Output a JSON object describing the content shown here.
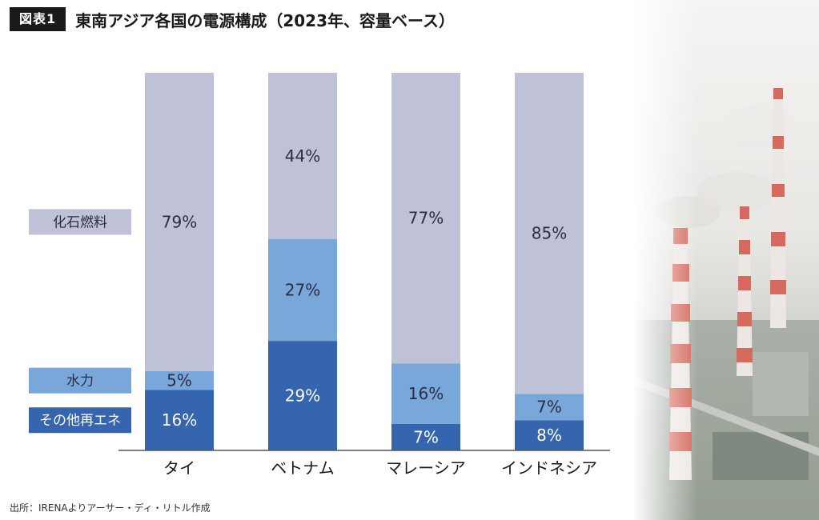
{
  "title_badge": "図表1",
  "title": "東南アジア各国の電源構成（2023年、容量ベース）",
  "source": "出所：IRENAよりアーサー・ディ・リトル作成",
  "colors": {
    "fossil": "#bfc1d6",
    "hydro": "#7aa7da",
    "other": "#3565ae",
    "text_dark": "#2a2d45",
    "text_light": "#ffffff"
  },
  "chart_data": {
    "type": "bar",
    "stacked": true,
    "unit": "%",
    "categories": [
      "タイ",
      "ベトナム",
      "マレーシア",
      "インドネシア"
    ],
    "series": [
      {
        "name": "その他再エネ",
        "values": [
          16,
          29,
          7,
          8
        ]
      },
      {
        "name": "水力",
        "values": [
          5,
          27,
          16,
          7
        ]
      },
      {
        "name": "化石燃料",
        "values": [
          79,
          44,
          77,
          85
        ]
      }
    ],
    "ylim": [
      0,
      100
    ],
    "grid": false,
    "legend_placement": "left"
  }
}
